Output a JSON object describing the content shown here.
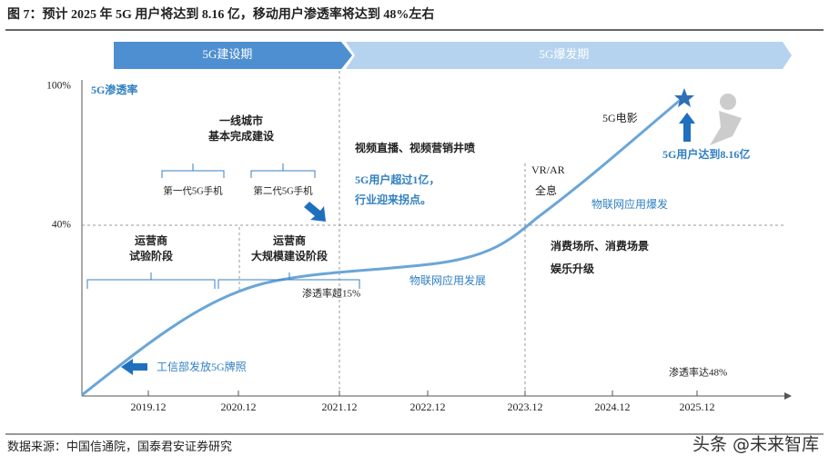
{
  "header": {
    "title": "图 7：预计 2025 年 5G 用户将达到 8.16 亿，移动用户渗透率将达到 48%左右"
  },
  "phases": [
    "5G建设期",
    "5G爆发期"
  ],
  "axis": {
    "y_labels": [
      "100%",
      "40%"
    ],
    "x_labels": [
      "2019.12",
      "2020.12",
      "2021.12",
      "2022.12",
      "2023.12",
      "2024.12",
      "2025.12"
    ]
  },
  "annotations": {
    "penetration": "5G渗透率",
    "tier1": [
      "一线城市",
      "基本完成建设"
    ],
    "phone1": "第一代5G手机",
    "phone2": "第二代5G手机",
    "trial": [
      "运营商",
      "试验阶段"
    ],
    "build": [
      "运营商",
      "大规模建设阶段"
    ],
    "video": "视频直播、视频营销井喷",
    "users1": [
      "5G用户超过1亿，",
      "行业迎来拐点。"
    ],
    "vr": [
      "VR/AR",
      "全息"
    ],
    "movie": "5G电影",
    "users816": "5G用户达到8.16亿",
    "iot_boom": "物联网应用爆发",
    "consume": [
      "消费场所、消费场景",
      "娱乐升级"
    ],
    "iot_dev": "物联网应用发展",
    "p15": "渗透率超15%",
    "license": "工信部发放5G牌照",
    "p48": "渗透率达48%"
  },
  "footer": {
    "source": "数据来源：中国信通院，国泰君安证券研究",
    "watermark": "头条 @未来智库"
  }
}
